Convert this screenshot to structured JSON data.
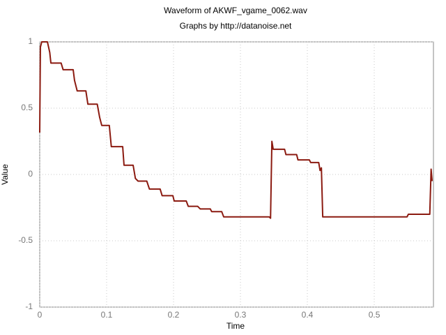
{
  "chart_data": {
    "type": "line",
    "title": "Waveform of AKWF_vgame_0062.wav",
    "subtitle": "Graphs by http://datanoise.net",
    "x_label": "Time",
    "y_label": "Value",
    "x": [
      0,
      0.001,
      0.003,
      0.0115,
      0.015,
      0.0167,
      0.032,
      0.035,
      0.05,
      0.052,
      0.056,
      0.069,
      0.072,
      0.086,
      0.0896,
      0.0927,
      0.104,
      0.107,
      0.124,
      0.126,
      0.1396,
      0.143,
      0.147,
      0.16,
      0.164,
      0.18,
      0.183,
      0.199,
      0.201,
      0.219,
      0.222,
      0.236,
      0.24,
      0.255,
      0.257,
      0.272,
      0.275,
      0.343,
      0.345,
      0.347,
      0.349,
      0.366,
      0.368,
      0.384,
      0.386,
      0.403,
      0.405,
      0.417,
      0.419,
      0.421,
      0.423,
      0.549,
      0.551,
      0.583,
      0.585,
      0.5865
    ],
    "series": [
      {
        "name": "Value",
        "color": "#8b1a10",
        "values": [
          0.316,
          0.96,
          1.0,
          1.0,
          0.92,
          0.84,
          0.84,
          0.79,
          0.79,
          0.71,
          0.63,
          0.63,
          0.53,
          0.53,
          0.43,
          0.37,
          0.37,
          0.21,
          0.21,
          0.07,
          0.07,
          -0.03,
          -0.05,
          -0.05,
          -0.11,
          -0.11,
          -0.16,
          -0.16,
          -0.2,
          -0.2,
          -0.24,
          -0.24,
          -0.26,
          -0.26,
          -0.28,
          -0.28,
          -0.32,
          -0.32,
          -0.33,
          0.25,
          0.19,
          0.19,
          0.15,
          0.15,
          0.11,
          0.11,
          0.09,
          0.09,
          0.03,
          0.05,
          -0.32,
          -0.32,
          -0.3,
          -0.3,
          0.04,
          -0.05
        ]
      }
    ],
    "xlim": [
      0,
      0.5885
    ],
    "ylim": [
      -1,
      1
    ],
    "xticks": [
      0,
      0.1,
      0.2,
      0.3,
      0.4,
      0.5
    ],
    "yticks": [
      -1,
      -0.5,
      0,
      0.5,
      1
    ],
    "grid": true
  }
}
